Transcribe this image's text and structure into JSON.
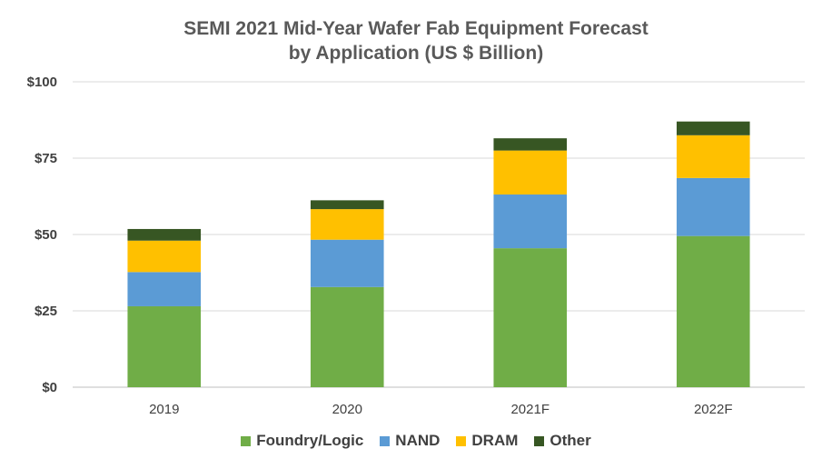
{
  "chart_data": {
    "type": "bar",
    "stacked": true,
    "title": [
      "SEMI 2021 Mid-Year Wafer Fab Equipment Forecast",
      "by Application (US $ Billion)"
    ],
    "categories": [
      "2019",
      "2020",
      "2021F",
      "2022F"
    ],
    "series": [
      {
        "name": "Foundry/Logic",
        "color": "#70ad47",
        "values": [
          26.5,
          32.8,
          45.5,
          49.5
        ]
      },
      {
        "name": "NAND",
        "color": "#5b9bd5",
        "values": [
          11.2,
          15.5,
          17.6,
          19.0
        ]
      },
      {
        "name": "DRAM",
        "color": "#ffc000",
        "values": [
          10.3,
          10.0,
          14.4,
          14.0
        ]
      },
      {
        "name": "Other",
        "color": "#375623",
        "values": [
          3.8,
          2.9,
          4.0,
          4.5
        ]
      }
    ],
    "y_ticks": [
      "$0",
      "$25",
      "$50",
      "$75",
      "$100"
    ],
    "ylim": [
      0,
      100
    ],
    "grid": true,
    "legend_position": "bottom"
  }
}
